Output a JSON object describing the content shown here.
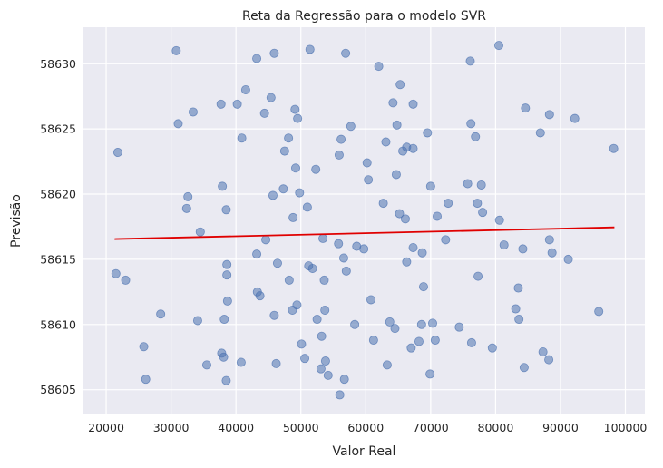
{
  "chart_data": {
    "type": "scatter",
    "title": "Reta da Regressão para o modelo SVR",
    "xlabel": "Valor Real",
    "ylabel": "Previsão",
    "xlim": [
      16500,
      103000
    ],
    "ylim": [
      58603.1,
      58632.8
    ],
    "x_ticks": [
      20000,
      30000,
      40000,
      50000,
      60000,
      70000,
      80000,
      90000,
      100000
    ],
    "y_ticks": [
      58605,
      58610,
      58615,
      58620,
      58625,
      58630
    ],
    "grid": true,
    "colors": {
      "points": "#4c72b0",
      "line": "#e00000",
      "background": "#eaeaf2",
      "grid": "#ffffff"
    },
    "series": [
      {
        "kind": "points",
        "values": [
          [
            21500,
            58613.9
          ],
          [
            21800,
            58623.2
          ],
          [
            23000,
            58613.4
          ],
          [
            25800,
            58608.3
          ],
          [
            26100,
            58605.8
          ],
          [
            28400,
            58610.8
          ],
          [
            30800,
            58631.0
          ],
          [
            31100,
            58625.4
          ],
          [
            32400,
            58618.9
          ],
          [
            32600,
            58619.8
          ],
          [
            33400,
            58626.3
          ],
          [
            34100,
            58610.3
          ],
          [
            34500,
            58617.1
          ],
          [
            35500,
            58606.9
          ],
          [
            37700,
            58626.9
          ],
          [
            37800,
            58607.8
          ],
          [
            37900,
            58620.6
          ],
          [
            38100,
            58607.5
          ],
          [
            38200,
            58610.4
          ],
          [
            38500,
            58618.8
          ],
          [
            38500,
            58605.7
          ],
          [
            38600,
            58614.6
          ],
          [
            38600,
            58613.8
          ],
          [
            38700,
            58611.8
          ],
          [
            40200,
            58626.9
          ],
          [
            40800,
            58607.1
          ],
          [
            40900,
            58624.3
          ],
          [
            41500,
            58628.0
          ],
          [
            43200,
            58630.4
          ],
          [
            43200,
            58615.4
          ],
          [
            43300,
            58612.5
          ],
          [
            43700,
            58612.2
          ],
          [
            44400,
            58626.2
          ],
          [
            44600,
            58616.5
          ],
          [
            45400,
            58627.4
          ],
          [
            45700,
            58619.9
          ],
          [
            45900,
            58610.7
          ],
          [
            45900,
            58630.8
          ],
          [
            46200,
            58607.0
          ],
          [
            46400,
            58614.7
          ],
          [
            47300,
            58620.4
          ],
          [
            47500,
            58623.3
          ],
          [
            48100,
            58624.3
          ],
          [
            48200,
            58613.4
          ],
          [
            48700,
            58611.1
          ],
          [
            48800,
            58618.2
          ],
          [
            49100,
            58626.5
          ],
          [
            49200,
            58622.0
          ],
          [
            49400,
            58611.5
          ],
          [
            49500,
            58625.8
          ],
          [
            49800,
            58620.1
          ],
          [
            50100,
            58608.5
          ],
          [
            50600,
            58607.4
          ],
          [
            51000,
            58619.0
          ],
          [
            51200,
            58614.5
          ],
          [
            51400,
            58631.1
          ],
          [
            51800,
            58614.3
          ],
          [
            52300,
            58621.9
          ],
          [
            52500,
            58610.4
          ],
          [
            53100,
            58606.6
          ],
          [
            53200,
            58609.1
          ],
          [
            53400,
            58616.6
          ],
          [
            53600,
            58613.4
          ],
          [
            53700,
            58611.1
          ],
          [
            53800,
            58607.2
          ],
          [
            54200,
            58606.1
          ],
          [
            55800,
            58616.2
          ],
          [
            55900,
            58623.0
          ],
          [
            56000,
            58604.6
          ],
          [
            56200,
            58624.2
          ],
          [
            56600,
            58615.1
          ],
          [
            56700,
            58605.8
          ],
          [
            56900,
            58630.8
          ],
          [
            57000,
            58614.1
          ],
          [
            57700,
            58625.2
          ],
          [
            58300,
            58610.0
          ],
          [
            58600,
            58616.0
          ],
          [
            59700,
            58615.8
          ],
          [
            60200,
            58622.4
          ],
          [
            60400,
            58621.1
          ],
          [
            60800,
            58611.9
          ],
          [
            61200,
            58608.8
          ],
          [
            62000,
            58629.8
          ],
          [
            62700,
            58619.3
          ],
          [
            63100,
            58624.0
          ],
          [
            63300,
            58606.9
          ],
          [
            63700,
            58610.2
          ],
          [
            64200,
            58627.0
          ],
          [
            64500,
            58609.7
          ],
          [
            64700,
            58621.5
          ],
          [
            64800,
            58625.3
          ],
          [
            65200,
            58618.5
          ],
          [
            65300,
            58628.4
          ],
          [
            65700,
            58623.3
          ],
          [
            66100,
            58618.1
          ],
          [
            66300,
            58623.6
          ],
          [
            66300,
            58614.8
          ],
          [
            67000,
            58608.2
          ],
          [
            67300,
            58626.9
          ],
          [
            67300,
            58623.5
          ],
          [
            67300,
            58615.9
          ],
          [
            68200,
            58608.7
          ],
          [
            68600,
            58610.0
          ],
          [
            68700,
            58615.5
          ],
          [
            68900,
            58612.9
          ],
          [
            69500,
            58624.7
          ],
          [
            69900,
            58606.2
          ],
          [
            70000,
            58620.6
          ],
          [
            70300,
            58610.1
          ],
          [
            70700,
            58608.8
          ],
          [
            71000,
            58618.3
          ],
          [
            72300,
            58616.5
          ],
          [
            72700,
            58619.3
          ],
          [
            74400,
            58609.8
          ],
          [
            75700,
            58620.8
          ],
          [
            76100,
            58630.2
          ],
          [
            76200,
            58625.4
          ],
          [
            76300,
            58608.6
          ],
          [
            76900,
            58624.4
          ],
          [
            77200,
            58619.3
          ],
          [
            77300,
            58613.7
          ],
          [
            77800,
            58620.7
          ],
          [
            78000,
            58618.6
          ],
          [
            79500,
            58608.2
          ],
          [
            80500,
            58631.4
          ],
          [
            80600,
            58618.0
          ],
          [
            81300,
            58616.1
          ],
          [
            83100,
            58611.2
          ],
          [
            83500,
            58612.8
          ],
          [
            83600,
            58610.4
          ],
          [
            84200,
            58615.8
          ],
          [
            84400,
            58606.7
          ],
          [
            84600,
            58626.6
          ],
          [
            86900,
            58624.7
          ],
          [
            87300,
            58607.9
          ],
          [
            88200,
            58607.3
          ],
          [
            88300,
            58616.5
          ],
          [
            88300,
            58626.1
          ],
          [
            88700,
            58615.5
          ],
          [
            91200,
            58615.0
          ],
          [
            92200,
            58625.8
          ],
          [
            95900,
            58611.0
          ],
          [
            98200,
            58623.5
          ]
        ]
      },
      {
        "kind": "regression-line",
        "values": [
          [
            21300,
            58616.55
          ],
          [
            98300,
            58617.45
          ]
        ]
      }
    ]
  }
}
